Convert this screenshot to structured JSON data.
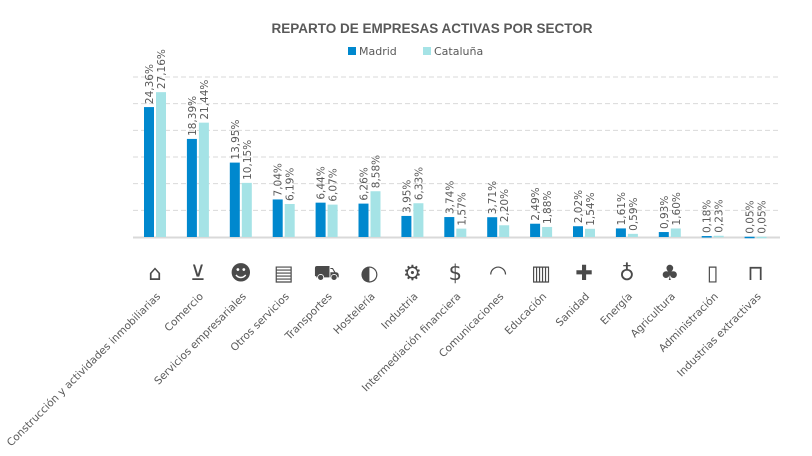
{
  "chart_data": {
    "type": "bar",
    "title": "REPARTO DE EMPRESAS ACTIVAS POR SECTOR",
    "xlabel": "",
    "ylabel": "",
    "ylim": [
      0,
      30
    ],
    "grid": true,
    "legend_position": "top",
    "categories": [
      "Construcción y actividades inmobiliarias",
      "Comercio",
      "Servicios empresariales",
      "Otros servicios",
      "Transportes",
      "Hostelería",
      "Industria",
      "Intermediación financiera",
      "Comunicaciones",
      "Educación",
      "Sanidad",
      "Energía",
      "Agricultura",
      "Administración",
      "Industrias extractivas"
    ],
    "icons": [
      "house-icon",
      "cart-icon",
      "people-icon",
      "shop-icon",
      "transport-icon",
      "dining-icon",
      "gears-icon",
      "money-bag-icon",
      "wifi-icon",
      "books-icon",
      "medical-kit-icon",
      "lightbulb-icon",
      "carrot-icon",
      "binders-icon",
      "barrier-icon"
    ],
    "icon_glyphs": [
      "⌂",
      "⊻",
      "☻",
      "▤",
      "⛟",
      "◐",
      "⚙",
      "$",
      "◠",
      "▥",
      "✚",
      "♁",
      "♣",
      "▯",
      "⊓"
    ],
    "series": [
      {
        "name": "Madrid",
        "color": "#0088CE",
        "values": [
          24.36,
          18.39,
          13.95,
          7.04,
          6.44,
          6.26,
          3.95,
          3.74,
          3.71,
          2.49,
          2.02,
          1.61,
          0.93,
          0.18,
          0.05
        ],
        "labels": [
          "24,36%",
          "18,39%",
          "13,95%",
          "7,04%",
          "6,44%",
          "6,26%",
          "3,95%",
          "3,74%",
          "3,71%",
          "2,49%",
          "2,02%",
          "1,61%",
          "0,93%",
          "0,18%",
          "0,05%"
        ]
      },
      {
        "name": "Cataluña",
        "color": "#A5E3E6",
        "values": [
          27.16,
          21.44,
          10.15,
          6.19,
          6.07,
          8.58,
          6.33,
          1.57,
          2.2,
          1.88,
          1.54,
          0.59,
          1.6,
          0.23,
          0.05
        ],
        "labels": [
          "27,16%",
          "21,44%",
          "10,15%",
          "6,19%",
          "6,07%",
          "8,58%",
          "6,33%",
          "1,57%",
          "2,20%",
          "1,88%",
          "1,54%",
          "0,59%",
          "1,60%",
          "0,23%",
          "0,05%"
        ]
      }
    ]
  }
}
